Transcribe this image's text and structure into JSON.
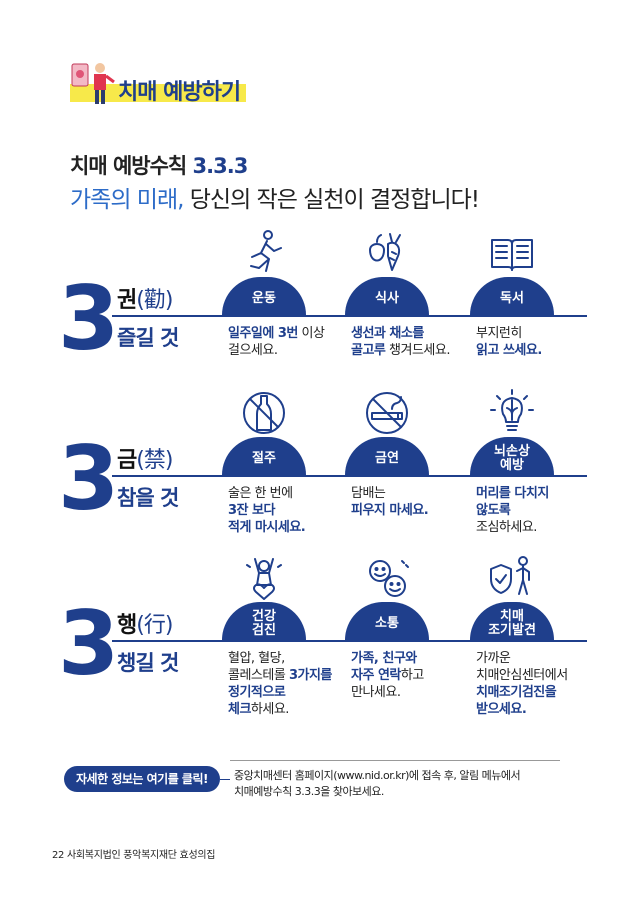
{
  "section_title": "치매 예방하기",
  "heading": {
    "prefix": "치매 예방수칙 ",
    "number": "3.3.3"
  },
  "subheading": {
    "highlight": "가족의 미래,",
    "rest": " 당신의 작은 실천이 결정합니다!"
  },
  "rules": [
    {
      "number": "3",
      "keyword": "권",
      "hanja": "(勸)",
      "verb": "즐길 것",
      "items": [
        {
          "icon": "running-person-icon",
          "label": "운동",
          "desc_bold": "일주일에 3번",
          "desc_rest": " 이상\n걸으세요."
        },
        {
          "icon": "vegetables-icon",
          "label": "식사",
          "desc_bold": "생선과 채소를\n골고루",
          "desc_rest": " 챙겨드세요."
        },
        {
          "icon": "open-book-icon",
          "label": "독서",
          "desc_pre": "부지런히\n",
          "desc_bold": "읽고 쓰세요."
        }
      ]
    },
    {
      "number": "3",
      "keyword": "금",
      "hanja": "(禁)",
      "verb": "참을 것",
      "items": [
        {
          "icon": "no-drinking-icon",
          "label": "절주",
          "desc_pre": "술은 한 번에\n",
          "desc_bold": "3잔 보다\n적게 마시세요."
        },
        {
          "icon": "no-smoking-icon",
          "label": "금연",
          "desc_pre": "담배는\n",
          "desc_bold": "피우지 마세요."
        },
        {
          "icon": "brain-bulb-icon",
          "label": "뇌손상\n예방",
          "desc_bold": "머리를 다치지\n않도록",
          "desc_rest": "\n조심하세요."
        }
      ]
    },
    {
      "number": "3",
      "keyword": "행",
      "hanja": "(行)",
      "verb": "챙길 것",
      "items": [
        {
          "icon": "cheering-person-icon",
          "label": "건강\n검진",
          "desc_pre": "혈압, 혈당,\n콜레스테롤 ",
          "desc_bold": "3가지를\n정기적으로\n체크",
          "desc_rest": "하세요."
        },
        {
          "icon": "smiley-faces-icon",
          "label": "소통",
          "desc_bold": "가족, 친구와\n자주 연락",
          "desc_rest": "하고\n만나세요."
        },
        {
          "icon": "shield-person-icon",
          "label": "치매\n조기발견",
          "desc_pre": "가까운\n치매안심센터에서\n",
          "desc_bold": "치매조기검진을\n받으세요."
        }
      ]
    }
  ],
  "more_info": {
    "button": "자세한 정보는 여기를 클릭!",
    "line1": "중앙치매센터 홈페이지(www.nid.or.kr)에 접속 후, 알림 메뉴에서",
    "line2": "치매예방수칙 3.3.3을 찾아보세요."
  },
  "footer": "22  사회복지법인 풍악복지재단 효성의집",
  "colors": {
    "primary": "#1f3f8c",
    "highlight": "#f7e94a",
    "accent": "#2d6cc8"
  }
}
